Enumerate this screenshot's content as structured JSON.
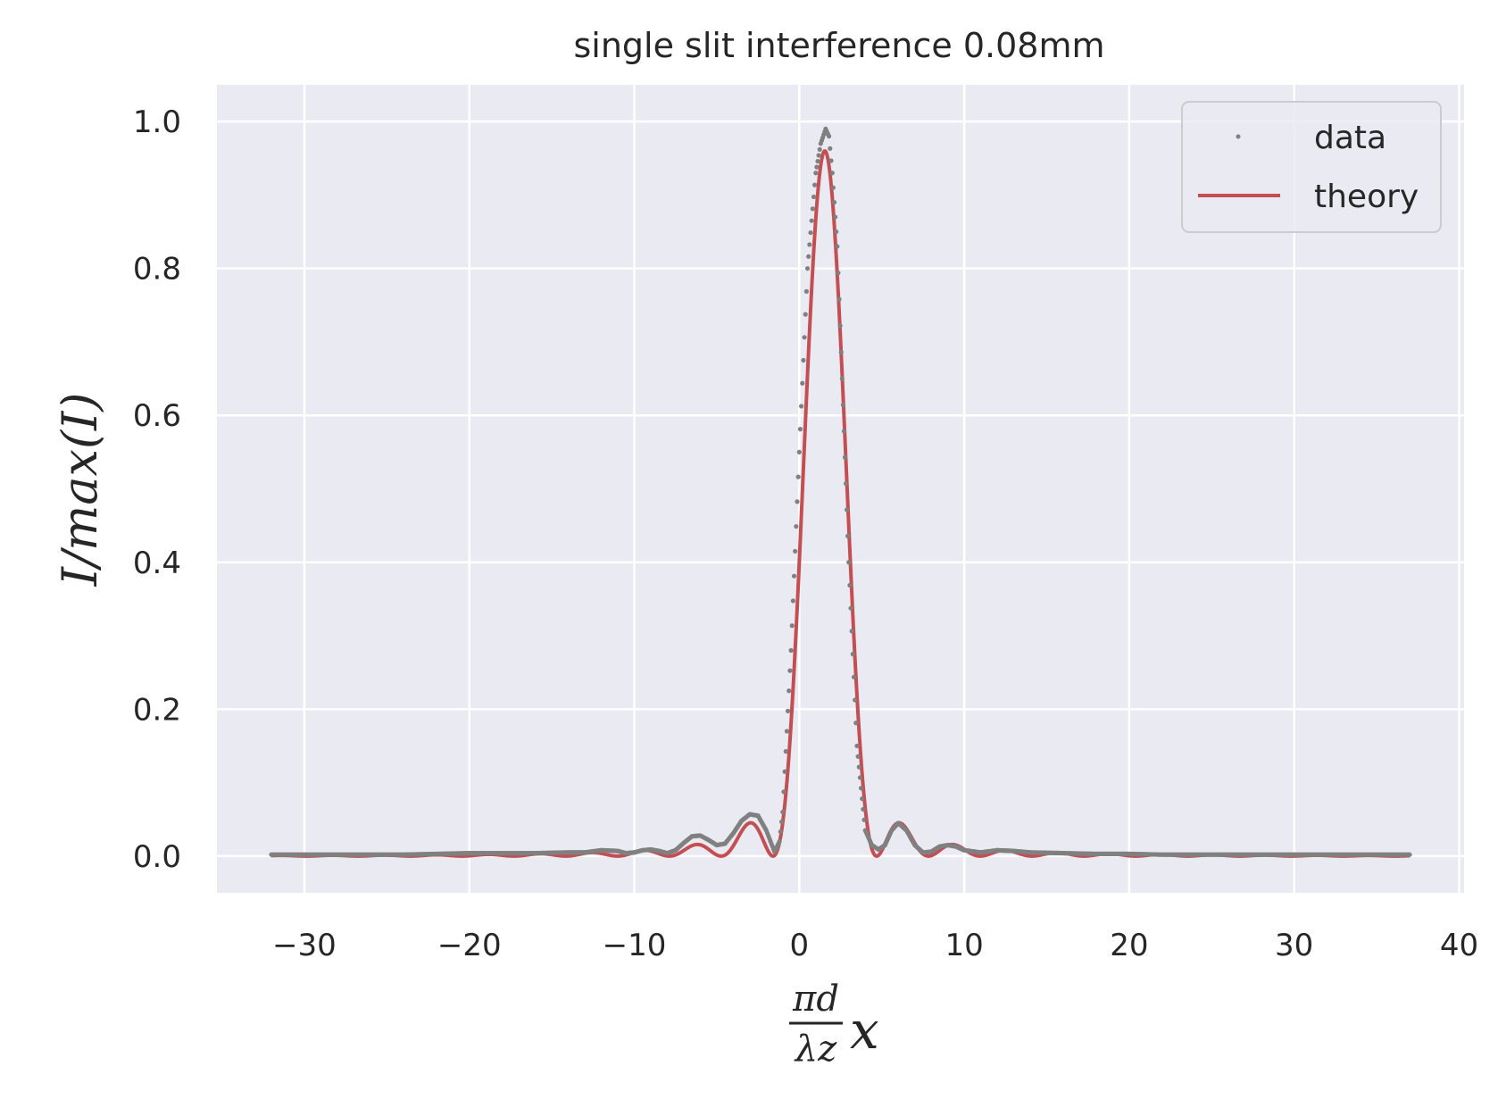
{
  "chart_data": {
    "type": "line",
    "title": "single slit interference 0.08mm",
    "xlabel": {
      "frac_num": "πd",
      "frac_den": "λz",
      "var": "x"
    },
    "ylabel": "I/max(I)",
    "xlim": [
      -35.3,
      40.3
    ],
    "ylim": [
      -0.05,
      1.05
    ],
    "xticks": [
      -30,
      -20,
      -10,
      0,
      10,
      20,
      30,
      40
    ],
    "xtick_labels": [
      "−30",
      "−20",
      "−10",
      "0",
      "10",
      "20",
      "30",
      "40"
    ],
    "yticks": [
      0.0,
      0.2,
      0.4,
      0.6,
      0.8,
      1.0
    ],
    "ytick_labels": [
      "0.0",
      "0.2",
      "0.4",
      "0.6",
      "0.8",
      "1.0"
    ],
    "grid": true,
    "legend_position": "top-right",
    "series": [
      {
        "name": "data",
        "style": "points",
        "color": "#808080",
        "x": [
          -32,
          -30,
          -28,
          -26,
          -24,
          -22,
          -20,
          -18,
          -16,
          -14,
          -13,
          -12,
          -11,
          -10.5,
          -10,
          -9.5,
          -9,
          -8.5,
          -8,
          -7.5,
          -7,
          -6.5,
          -6,
          -5.5,
          -5,
          -4.5,
          -4,
          -3.5,
          -3,
          -2.5,
          -2,
          -1.5,
          -1.2,
          -1,
          -0.5,
          0,
          0.5,
          1,
          1.3,
          1.6,
          1.8,
          2.0,
          2.3,
          2.6,
          3,
          3.5,
          4,
          4.4,
          4.8,
          5.2,
          5.6,
          6,
          6.5,
          7,
          7.5,
          8,
          8.5,
          9,
          9.5,
          10,
          11,
          12,
          13,
          14,
          16,
          18,
          20,
          22,
          24,
          26,
          28,
          30,
          32,
          34,
          36,
          37
        ],
        "y": [
          0.002,
          0.002,
          0.002,
          0.002,
          0.002,
          0.003,
          0.004,
          0.004,
          0.004,
          0.005,
          0.005,
          0.008,
          0.007,
          0.004,
          0.005,
          0.008,
          0.009,
          0.007,
          0.004,
          0.008,
          0.018,
          0.027,
          0.028,
          0.022,
          0.015,
          0.017,
          0.031,
          0.048,
          0.057,
          0.055,
          0.035,
          0.006,
          0.02,
          0.06,
          0.28,
          0.55,
          0.8,
          0.93,
          0.97,
          0.99,
          0.98,
          0.93,
          0.83,
          0.65,
          0.4,
          0.15,
          0.035,
          0.015,
          0.009,
          0.015,
          0.035,
          0.045,
          0.035,
          0.015,
          0.005,
          0.006,
          0.013,
          0.015,
          0.013,
          0.008,
          0.005,
          0.008,
          0.007,
          0.005,
          0.004,
          0.003,
          0.003,
          0.002,
          0.002,
          0.002,
          0.002,
          0.002,
          0.002,
          0.002,
          0.002,
          0.002
        ]
      },
      {
        "name": "theory",
        "style": "line",
        "color": "#c44e52",
        "function": "sinc_squared",
        "center": 1.55,
        "peak": 0.96,
        "x_range": [
          -32,
          37
        ]
      }
    ]
  }
}
